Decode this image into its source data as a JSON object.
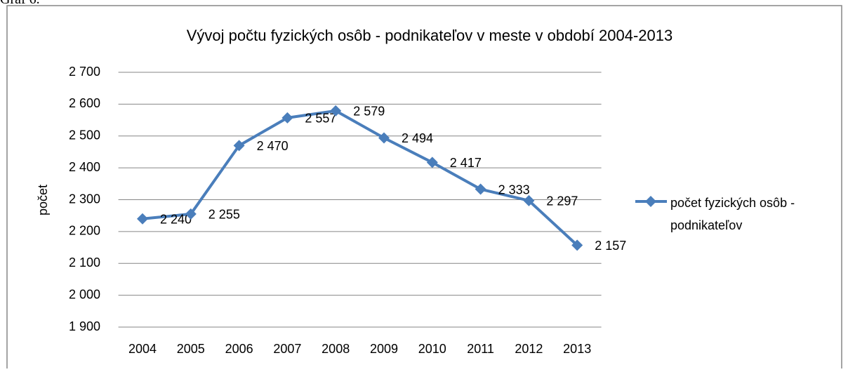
{
  "caption": "Graf 6.",
  "chart_data": {
    "type": "line",
    "title": "Vývoj počtu fyzických osôb - podnikateľov v meste v období 2004-2013",
    "y_label": "počet",
    "categories": [
      "2004",
      "2005",
      "2006",
      "2007",
      "2008",
      "2009",
      "2010",
      "2011",
      "2012",
      "2013"
    ],
    "series": [
      {
        "name": "počet fyzických osôb - podnikateľov",
        "color": "#4a7ebb",
        "values": [
          2240,
          2255,
          2470,
          2557,
          2579,
          2494,
          2417,
          2333,
          2297,
          2157
        ],
        "value_labels": [
          "2 240",
          "2 255",
          "2 470",
          "2 557",
          "2 579",
          "2 494",
          "2 417",
          "2 333",
          "2 297",
          "2 157"
        ]
      }
    ],
    "ylim": [
      1900,
      2700
    ],
    "yticks": [
      {
        "value": 1900,
        "label": "1 900"
      },
      {
        "value": 2000,
        "label": "2 000"
      },
      {
        "value": 2100,
        "label": "2 100"
      },
      {
        "value": 2200,
        "label": "2 200"
      },
      {
        "value": 2300,
        "label": "2 300"
      },
      {
        "value": 2400,
        "label": "2 400"
      },
      {
        "value": 2500,
        "label": "2 500"
      },
      {
        "value": 2600,
        "label": "2 600"
      },
      {
        "value": 2700,
        "label": "2 700"
      }
    ],
    "grid": true,
    "legend": "right"
  }
}
